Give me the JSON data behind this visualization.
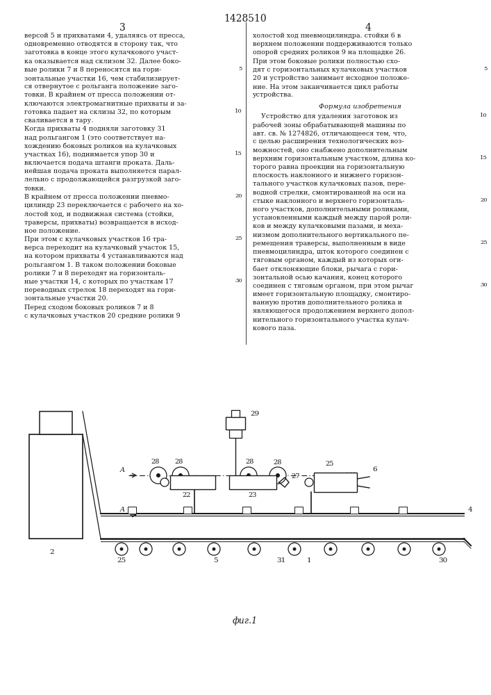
{
  "patent_number": "1428510",
  "col_left_num": "3",
  "col_right_num": "4",
  "text_color": "#1a1a1a",
  "line_color": "#1a1a1a",
  "fig_label": "фиг.1",
  "left_col_lines": [
    "версой 5 и прихватами 4, удаляясь от пресса,",
    "одновременно отводятся в сторону так, что",
    "заготовка в конце этого кулачкового участ-",
    "ка оказывается над склизом 32. Далее боко-",
    "вые ролики 7 и 8 переносятся на гори-",
    "зонтальные участки 16, чем стабилизирует-",
    "ся отвернутое с рольганга положение заго-",
    "товки. В крайнем от пресса положении от-",
    "ключаются электромагнитные прихваты и за-",
    "готовка падает на склизы 32, по которым",
    "сваливается в тару.",
    "Когда прихваты 4 подняли заготовку 31",
    "над рольгангом 1 (это соответствует на-",
    "хождению боковых роликов на кулачковых",
    "участках 16), поднимается упор 30 и",
    "включается подача штанги проката. Даль-",
    "нейшая подача проката выполняется парал-",
    "лельно с продолжающейся разгрузкой заго-",
    "товки.",
    "В крайнем от пресса положении пневмо-",
    "цилиндр 23 переключается с рабочего на хо-",
    "лостой ход, и подвижная система (стойки,",
    "траверсы, прихваты) возвращается в исход-",
    "ное положение.",
    "При этом с кулачковых участков 16 тра-",
    "верса переходит на кулачковый участок 15,",
    "на котором прихваты 4 устанавливаются над",
    "рольгангом 1. В таком положении боковые",
    "ролики 7 и 8 переходят на горизонталь-",
    "ные участки 14, с которых по участкам 17",
    "переводных стрелок 18 переходят на гори-",
    "зонтальные участки 20.",
    "Перед сходом боковых роликов 7 и 8",
    "с кулачковых участков 20 средние ролики 9"
  ],
  "right_col_top_lines": [
    "холостой ход пневмоцилиндра. стойки 6 в",
    "верхнем положении поддерживаются только",
    "опорой средних роликов 9 на площадке 26.",
    "При этом боковые ролики полностью схо-",
    "дят с горизонтальных кулачковых участков",
    "20 и устройство занимает исходное положе-",
    "ние. На этом заканчивается цикл работы",
    "устройства."
  ],
  "formula_title": "Формула изобретения",
  "formula_lines": [
    "    Устройство для удаления заготовок из",
    "рабочей зоны обрабатывающей машины по",
    "авт. св. № 1274826, отличающееся тем, что,",
    "с целью расширения технологических воз-",
    "можностей, оно снабжено дополнительным",
    "верхним горизонтальным участком, длина ко-",
    "торого равна проекции на горизонтальную",
    "плоскость наклонного и нижнего горизон-",
    "тального участков кулачковых пазов, пере-",
    "водной стрелки, смонтированной на оси на",
    "стыке наклонного и верхнего горизонталь-",
    "ного участков, дополнительными роликами,",
    "установленными каждый между парой роли-",
    "ков и между кулачковыми пазами, и меха-",
    "низмом дополнительного вертикального пе-",
    "ремещения траверсы, выполненным в виде",
    "пневмоцилиндра, шток которого соединен с",
    "тяговым органом, каждый из которых оги-",
    "бает отклоняющие блоки, рычага с гори-",
    "зонтальной осью качания, конец которого",
    "соединен с тяговым органом, при этом рычаг",
    "имеет горизонтальную площадку, смонтиро-",
    "ванную против дополнительного ролика и",
    "являющегося продолжением верхнего допол-",
    "нительного горизонтального участка кулач-",
    "кового паза."
  ]
}
